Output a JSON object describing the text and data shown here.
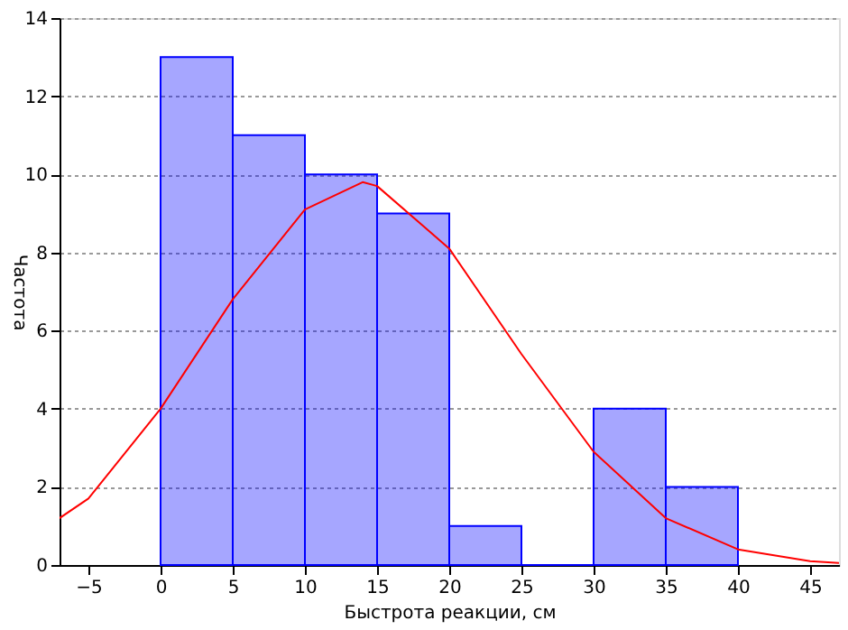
{
  "chart_data": {
    "type": "histogram",
    "xlabel": "Быстрота реакции, см",
    "ylabel": "Частота",
    "bins": [
      0,
      5,
      10,
      15,
      20,
      25,
      30,
      35,
      40
    ],
    "values": [
      13,
      11,
      10,
      9,
      1,
      0,
      4,
      2
    ],
    "color": "#0000ff",
    "series": [
      {
        "type": "line",
        "color": "#ff0000",
        "x": [
          -7,
          -5,
          0,
          5,
          10,
          14,
          15,
          20,
          25,
          30,
          35,
          40,
          45,
          47
        ],
        "values": [
          1.2,
          1.7,
          4.0,
          6.8,
          9.1,
          9.8,
          9.7,
          8.1,
          5.4,
          2.9,
          1.2,
          0.4,
          0.1,
          0.05
        ]
      }
    ],
    "xlim": [
      -7,
      47
    ],
    "xticks": [
      -5,
      0,
      5,
      10,
      15,
      20,
      25,
      30,
      35,
      40,
      45
    ],
    "ylim": [
      0,
      14
    ],
    "yticks": [
      0,
      2,
      4,
      6,
      8,
      10,
      12,
      14
    ],
    "grid": "y"
  }
}
